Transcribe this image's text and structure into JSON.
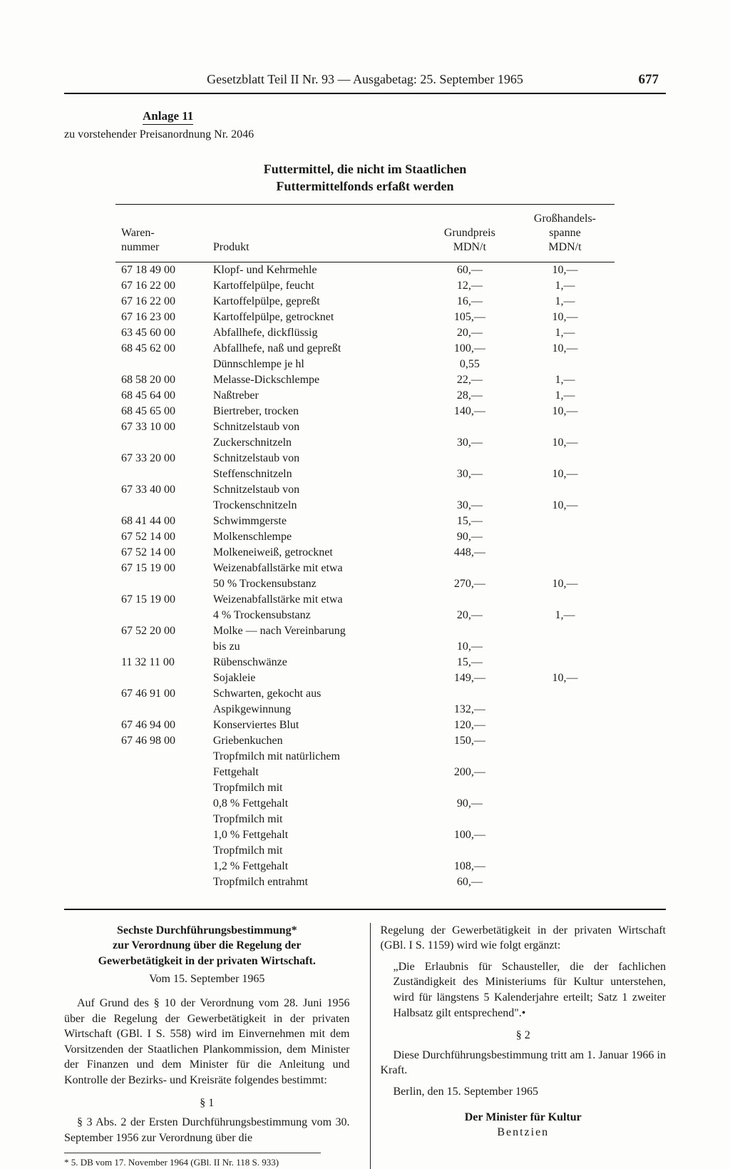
{
  "header": {
    "title": "Gesetzblatt Teil II Nr. 93 — Ausgabetag: 25. September 1965",
    "page": "677"
  },
  "anlage": {
    "label": "Anlage 11",
    "sub": "zu vorstehender Preisanordnung Nr. 2046"
  },
  "table": {
    "title_l1": "Futtermittel, die nicht im Staatlichen",
    "title_l2": "Futtermittelfonds erfaßt werden",
    "head": {
      "c1a": "Waren-",
      "c1b": "nummer",
      "c2": "Produkt",
      "c3a": "Grundpreis",
      "c3b": "MDN/t",
      "c4a": "Großhandels-",
      "c4b": "spanne",
      "c4c": "MDN/t"
    },
    "rows": [
      {
        "n": "67 18 49 00",
        "p": "Klopf- und Kehrmehle",
        "g": "60,—",
        "s": "10,—",
        "gap": false
      },
      {
        "n": "67 16 22 00",
        "p": "Kartoffelpülpe, feucht",
        "g": "12,—",
        "s": "1,—",
        "gap": false
      },
      {
        "n": "67 16 22 00",
        "p": "Kartoffelpülpe, gepreßt",
        "g": "16,—",
        "s": "1,—",
        "gap": false
      },
      {
        "n": "67 16 23 00",
        "p": "Kartoffelpülpe, getrocknet",
        "g": "105,—",
        "s": "10,—",
        "gap": false
      },
      {
        "n": "63 45 60 00",
        "p": "Abfallhefe, dickflüssig",
        "g": "20,—",
        "s": "1,—",
        "gap": true
      },
      {
        "n": "68 45 62 00",
        "p": "Abfallhefe, naß und gepreßt",
        "g": "100,—",
        "s": "10,—",
        "gap": false
      },
      {
        "n": "",
        "p": "Dünnschlempe je hl",
        "g": "0,55",
        "s": "",
        "gap": false
      },
      {
        "n": "68 58 20 00",
        "p": "Melasse-Dickschlempe",
        "g": "22,—",
        "s": "1,—",
        "gap": false
      },
      {
        "n": "68 45 64 00",
        "p": "Naßtreber",
        "g": "28,—",
        "s": "1,—",
        "gap": false
      },
      {
        "n": "68 45 65 00",
        "p": "Biertreber, trocken",
        "g": "140,—",
        "s": "10,—",
        "gap": false
      },
      {
        "n": "67 33 10 00",
        "p": "Schnitzelstaub von",
        "g": "",
        "s": "",
        "gap": true
      },
      {
        "n": "",
        "p": "Zuckerschnitzeln",
        "g": "30,—",
        "s": "10,—",
        "gap": false
      },
      {
        "n": "67 33 20 00",
        "p": "Schnitzelstaub von",
        "g": "",
        "s": "",
        "gap": false
      },
      {
        "n": "",
        "p": "Steffenschnitzeln",
        "g": "30,—",
        "s": "10,—",
        "gap": false
      },
      {
        "n": "67 33 40 00",
        "p": "Schnitzelstaub von",
        "g": "",
        "s": "",
        "gap": false
      },
      {
        "n": "",
        "p": "Trockenschnitzeln",
        "g": "30,—",
        "s": "10,—",
        "gap": false
      },
      {
        "n": "68 41 44 00",
        "p": "Schwimmgerste",
        "g": "15,—",
        "s": "",
        "gap": false
      },
      {
        "n": "67 52 14 00",
        "p": "Molkenschlempe",
        "g": "90,—",
        "s": "",
        "gap": false
      },
      {
        "n": "67 52 14 00",
        "p": "Molkeneiweiß, getrocknet",
        "g": "448,—",
        "s": "",
        "gap": false
      },
      {
        "n": "67 15 19 00",
        "p": "Weizenabfallstärke mit etwa",
        "g": "",
        "s": "",
        "gap": false
      },
      {
        "n": "",
        "p": "50 % Trockensubstanz",
        "g": "270,—",
        "s": "10,—",
        "gap": false
      },
      {
        "n": "67 15 19 00",
        "p": "Weizenabfallstärke mit etwa",
        "g": "",
        "s": "",
        "gap": false
      },
      {
        "n": "",
        "p": "4 % Trockensubstanz",
        "g": "20,—",
        "s": "1,—",
        "gap": false
      },
      {
        "n": "67 52 20 00",
        "p": "Molke — nach Vereinbarung",
        "g": "",
        "s": "",
        "gap": false
      },
      {
        "n": "",
        "p": "bis zu",
        "g": "10,—",
        "s": "",
        "gap": false
      },
      {
        "n": "11 32 11 00",
        "p": "Rübenschwänze",
        "g": "15,—",
        "s": "",
        "gap": true
      },
      {
        "n": "",
        "p": "Sojakleie",
        "g": "149,—",
        "s": "10,—",
        "gap": false
      },
      {
        "n": "67 46 91 00",
        "p": "Schwarten, gekocht aus",
        "g": "",
        "s": "",
        "gap": false
      },
      {
        "n": "",
        "p": "Aspikgewinnung",
        "g": "132,—",
        "s": "",
        "gap": false
      },
      {
        "n": "67 46 94 00",
        "p": "Konserviertes Blut",
        "g": "120,—",
        "s": "",
        "gap": false
      },
      {
        "n": "67 46 98 00",
        "p": "Griebenkuchen",
        "g": "150,—",
        "s": "",
        "gap": true
      },
      {
        "n": "",
        "p": "Tropfmilch mit natürlichem",
        "g": "",
        "s": "",
        "gap": false
      },
      {
        "n": "",
        "p": "Fettgehalt",
        "g": "200,—",
        "s": "",
        "gap": false
      },
      {
        "n": "",
        "p": "Tropfmilch mit",
        "g": "",
        "s": "",
        "gap": false
      },
      {
        "n": "",
        "p": "0,8 % Fettgehalt",
        "g": "90,—",
        "s": "",
        "gap": false
      },
      {
        "n": "",
        "p": "Tropfmilch mit",
        "g": "",
        "s": "",
        "gap": false
      },
      {
        "n": "",
        "p": "1,0 % Fettgehalt",
        "g": "100,—",
        "s": "",
        "gap": false
      },
      {
        "n": "",
        "p": "Tropfmilch mit",
        "g": "",
        "s": "",
        "gap": false
      },
      {
        "n": "",
        "p": "1,2 % Fettgehalt",
        "g": "108,—",
        "s": "",
        "gap": false
      },
      {
        "n": "",
        "p": "Tropfmilch entrahmt",
        "g": "60,—",
        "s": "",
        "gap": false
      }
    ]
  },
  "law": {
    "title_l1": "Sechste Durchführungsbestimmung*",
    "title_l2": "zur Verordnung über die Regelung der",
    "title_l3": "Gewerbetätigkeit in der privaten Wirtschaft.",
    "date": "Vom 15. September 1965",
    "left_p1": "Auf Grund des § 10 der Verordnung vom 28. Juni 1956 über die Regelung der Gewerbetätigkeit in der privaten Wirtschaft (GBl. I S. 558) wird im Einvernehmen mit dem Vorsitzenden der Staatlichen Plankommission, dem Minister der Finanzen und dem Minister für die Anleitung und Kontrolle der Bezirks- und Kreisräte folgendes bestimmt:",
    "s1": "§ 1",
    "left_p2": "§ 3 Abs. 2 der Ersten Durchführungsbestimmung vom 30. September 1956 zur Verordnung über die",
    "footnote": "* 5. DB vom 17. November 1964 (GBl. II Nr. 118 S. 933)",
    "right_p1": "Regelung der Gewerbetätigkeit in der privaten Wirtschaft (GBl. I S. 1159) wird wie folgt ergänzt:",
    "right_quote": "„Die Erlaubnis für Schausteller, die der fachlichen Zuständigkeit des Ministeriums für Kultur unterstehen, wird für längstens 5 Kalenderjahre erteilt; Satz 1 zweiter Halbsatz gilt entsprechend\".•",
    "s2": "§ 2",
    "right_p2": "Diese Durchführungsbestimmung tritt am 1. Januar 1966 in Kraft.",
    "place_date": "Berlin, den 15. September 1965",
    "sig_title": "Der Minister für Kultur",
    "sig_name": "Bentzien"
  }
}
